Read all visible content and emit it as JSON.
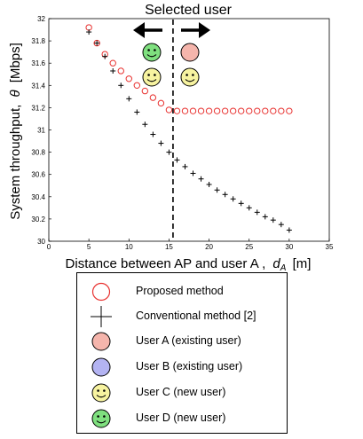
{
  "chart_data": {
    "type": "scatter",
    "title": "Selected user",
    "xlabel_main": "Distance between AP and user A ,",
    "xlabel_symbol": "d",
    "xlabel_subscript": "A",
    "xlabel_unit": "[m]",
    "ylabel_main": "System throughput,",
    "ylabel_symbol": "θ",
    "ylabel_unit": "[Mbps]",
    "xlim": [
      0,
      35
    ],
    "ylim": [
      30,
      32
    ],
    "xticks": [
      "0",
      "5",
      "10",
      "15",
      "20",
      "25",
      "30",
      "35"
    ],
    "yticks": [
      "30",
      "30.2",
      "30.4",
      "30.6",
      "30.8",
      "31",
      "31.2",
      "31.4",
      "31.6",
      "31.8",
      "32"
    ],
    "grid": false,
    "divider_x": 15.5,
    "series": [
      {
        "name": "Proposed method",
        "marker": "circle",
        "color": "#e8312f",
        "x": [
          5,
          6,
          7,
          8,
          9,
          10,
          11,
          12,
          13,
          14,
          15,
          16,
          17,
          18,
          19,
          20,
          21,
          22,
          23,
          24,
          25,
          26,
          27,
          28,
          29,
          30
        ],
        "y": [
          31.92,
          31.78,
          31.68,
          31.6,
          31.53,
          31.46,
          31.4,
          31.35,
          31.29,
          31.24,
          31.18,
          31.17,
          31.17,
          31.17,
          31.17,
          31.17,
          31.17,
          31.17,
          31.17,
          31.17,
          31.17,
          31.17,
          31.17,
          31.17,
          31.17,
          31.17
        ]
      },
      {
        "name": "Conventional method [2]",
        "marker": "plus",
        "color": "#000000",
        "x": [
          5,
          6,
          7,
          8,
          9,
          10,
          11,
          12,
          13,
          14,
          15,
          16,
          17,
          18,
          19,
          20,
          21,
          22,
          23,
          24,
          25,
          26,
          27,
          28,
          29,
          30
        ],
        "y": [
          31.88,
          31.78,
          31.66,
          31.53,
          31.4,
          31.28,
          31.16,
          31.05,
          30.96,
          30.88,
          30.8,
          30.73,
          30.67,
          30.61,
          30.56,
          30.51,
          30.46,
          30.42,
          30.38,
          30.34,
          30.3,
          30.26,
          30.22,
          30.19,
          30.15,
          30.1
        ]
      }
    ],
    "annotations": {
      "left_users": [
        "User D",
        "User C"
      ],
      "right_users": [
        "User A",
        "User C"
      ]
    }
  },
  "legend": {
    "items": [
      {
        "label": "Proposed method",
        "symbol": "open-circle",
        "color": "#e8312f"
      },
      {
        "label": "Conventional method [2]",
        "symbol": "plus",
        "color": "#000000"
      },
      {
        "label": "User A (existing user)",
        "symbol": "filled-circle",
        "color": "#f5b5ac"
      },
      {
        "label": "User B (existing user)",
        "symbol": "filled-circle",
        "color": "#b3b3f2"
      },
      {
        "label": "User C (new user)",
        "symbol": "smiley",
        "color": "#f7f3a0"
      },
      {
        "label": "User D (new user)",
        "symbol": "smiley",
        "color": "#7fe07f"
      }
    ]
  }
}
